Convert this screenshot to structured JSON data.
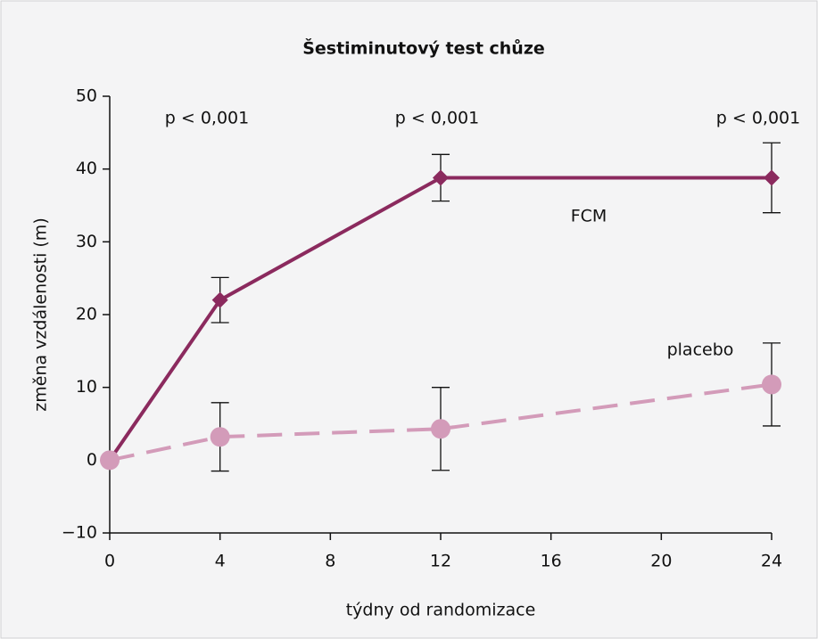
{
  "chart_data": {
    "type": "line",
    "title": "Šestiminutový test chůze",
    "x_label": "týdny od randomizace",
    "y_label": "změna vzdálenosti (m)",
    "x": [
      0,
      4,
      12,
      24
    ],
    "xlim": [
      0,
      24
    ],
    "xticks": [
      0,
      4,
      8,
      12,
      16,
      20,
      24
    ],
    "ylim": [
      -10,
      50
    ],
    "yticks": [
      {
        "value": -10,
        "label": "−10"
      },
      0,
      10,
      20,
      30,
      40,
      50
    ],
    "annotations": [
      "p < 0,001",
      "p < 0,001",
      "p < 0,001"
    ],
    "series": [
      {
        "name": "FCM",
        "color": "#8b2a5e",
        "marker": "diamond",
        "dashed": false,
        "values": [
          0,
          22,
          38.8,
          38.8
        ],
        "errors": [
          null,
          3.1,
          3.2,
          4.8
        ]
      },
      {
        "name": "placebo",
        "color": "#d39bb9",
        "marker": "circle",
        "dashed": true,
        "values": [
          0,
          3.2,
          4.3,
          10.4
        ],
        "errors": [
          null,
          4.7,
          5.7,
          5.7
        ]
      }
    ]
  }
}
